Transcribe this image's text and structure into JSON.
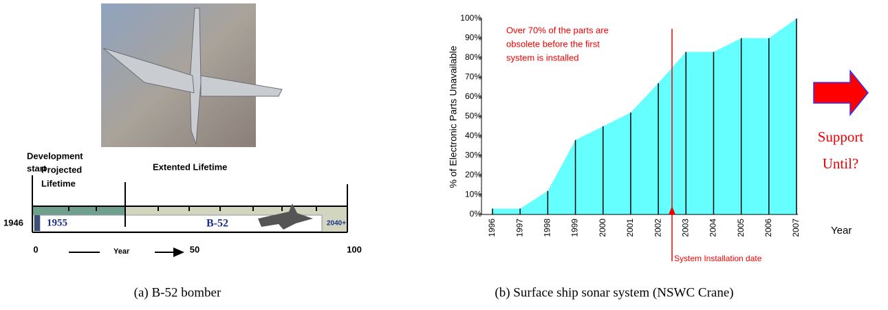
{
  "timeline": {
    "labels": {
      "development": "Development",
      "start": "start",
      "projected": "Projected",
      "lifetime": "Lifetime",
      "extended": "Extented Lifetime"
    },
    "start_year": "1946",
    "projected_year": "1955",
    "aircraft": "B-52",
    "end_year": "2040+",
    "axis_ticks": [
      "0",
      "50",
      "100"
    ],
    "axis_label": "Year"
  },
  "chart_data": {
    "type": "area",
    "y_label": "% of Electronic Parts Unavailable",
    "x_label": "Year",
    "x": [
      1996,
      1997,
      1998,
      1999,
      2000,
      2001,
      2002,
      2003,
      2004,
      2005,
      2006,
      2007
    ],
    "values": [
      3,
      3,
      12,
      38,
      45,
      52,
      67,
      83,
      83,
      90,
      90,
      100
    ],
    "color": "#66ffff",
    "xlim": [
      1996,
      2007
    ],
    "ylim": [
      0,
      100
    ],
    "yticks": [
      {
        "value": 0,
        "label": "0%"
      },
      {
        "value": 10,
        "label": "10%"
      },
      {
        "value": 20,
        "label": "20%"
      },
      {
        "value": 30,
        "label": "30%"
      },
      {
        "value": 40,
        "label": "40%"
      },
      {
        "value": 50,
        "label": "50%"
      },
      {
        "value": 60,
        "label": "60%"
      },
      {
        "value": 70,
        "label": "70%"
      },
      {
        "value": 80,
        "label": "80%"
      },
      {
        "value": 90,
        "label": "90%"
      },
      {
        "value": 100,
        "label": "100%"
      }
    ],
    "annotation_lines": [
      "Over 70% of the parts are",
      "obsolete before the first",
      "system is installed"
    ],
    "marker_label": "System Installation date",
    "side_note": [
      "Support",
      "Until?"
    ]
  },
  "captions": [
    "(a) B-52 bomber",
    "(b) Surface ship sonar system (NSWC Crane)"
  ]
}
